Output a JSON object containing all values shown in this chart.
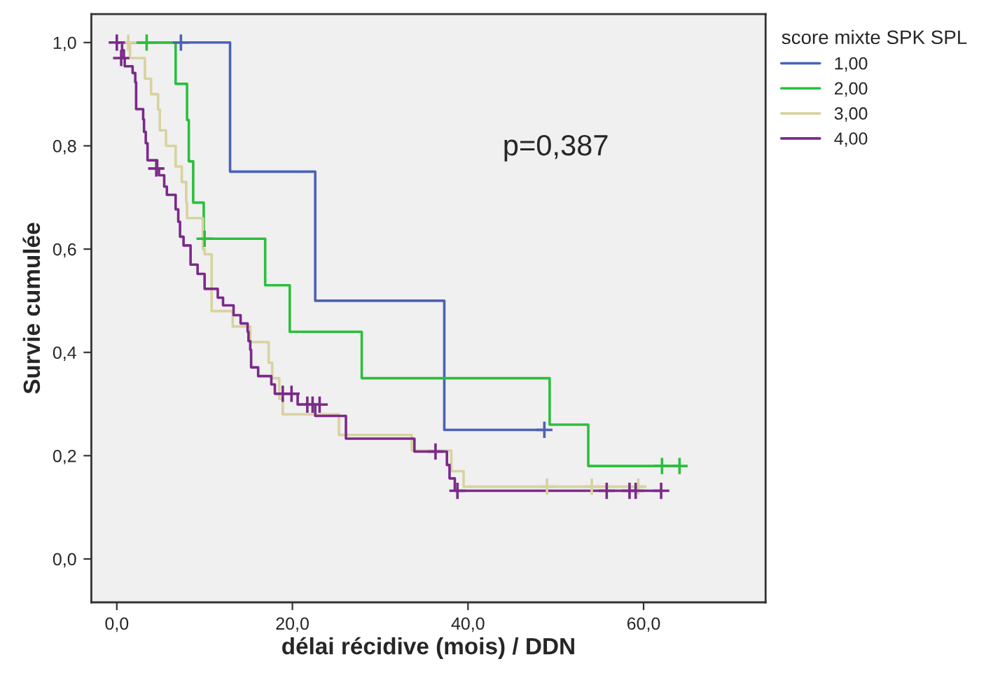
{
  "chart_data": {
    "type": "step",
    "xlabel": "délai récidive (mois) / DDN",
    "ylabel": "Survie cumulée",
    "legend_title": "score mixte SPK SPL",
    "legend": "right",
    "grid": false,
    "annotations": [
      "p=0,387"
    ],
    "xlim": [
      -2.9,
      73.9
    ],
    "ylim": [
      -0.084,
      1.055
    ],
    "xticks": [
      {
        "value": 0,
        "label": "0,0"
      },
      {
        "value": 20,
        "label": "20,0"
      },
      {
        "value": 40,
        "label": "40,0"
      },
      {
        "value": 60,
        "label": "60,0"
      }
    ],
    "yticks": [
      {
        "value": 0,
        "label": "0,0"
      },
      {
        "value": 0.2,
        "label": "0,2"
      },
      {
        "value": 0.4,
        "label": "0,4"
      },
      {
        "value": 0.6,
        "label": "0,6"
      },
      {
        "value": 0.8,
        "label": "0,8"
      },
      {
        "value": 1.0,
        "label": "1,0"
      }
    ],
    "series": [
      {
        "name": "1,00",
        "color": "#4a62b8",
        "x": [
          0,
          12.9,
          22.6,
          37.3,
          48.7
        ],
        "values": [
          1,
          0.75,
          0.5,
          0.25,
          0.25
        ]
      },
      {
        "name": "2,00",
        "color": "#2dbe3e",
        "x": [
          0,
          6.7,
          8.0,
          8.2,
          8.7,
          9.9,
          16.9,
          19.7,
          27.9,
          49.3,
          53.7,
          64.1
        ],
        "values": [
          1,
          0.92,
          0.85,
          0.77,
          0.69,
          0.62,
          0.53,
          0.44,
          0.35,
          0.26,
          0.18,
          0.18
        ]
      },
      {
        "name": "3,00",
        "color": "#d8d2a0",
        "x": [
          1.3,
          1.5,
          3.2,
          3.9,
          4.7,
          4.9,
          5.6,
          6.7,
          7.4,
          7.9,
          8.0,
          9.8,
          10.0,
          10.8,
          13.2,
          15.2,
          17.3,
          17.7,
          18.5,
          18.9,
          25.3,
          33.6,
          38.1,
          39.5,
          59.9
        ],
        "values": [
          1,
          0.97,
          0.93,
          0.9,
          0.87,
          0.83,
          0.8,
          0.76,
          0.73,
          0.69,
          0.66,
          0.6,
          0.59,
          0.48,
          0.45,
          0.42,
          0.38,
          0.35,
          0.31,
          0.28,
          0.24,
          0.21,
          0.17,
          0.14,
          0.14
        ]
      },
      {
        "name": "4,00",
        "color": "#7b2a8a",
        "x": [
          0,
          0.6,
          0.8,
          0.9,
          1.8,
          2.1,
          2.2,
          3.0,
          3.1,
          3.3,
          3.5,
          4.6,
          4.8,
          5.4,
          5.7,
          6.7,
          7.0,
          7.2,
          7.6,
          8.4,
          9.2,
          10.0,
          11.5,
          12.1,
          13.3,
          14.1,
          14.9,
          15.0,
          15.2,
          15.3,
          16.1,
          17.6,
          18.0,
          20.6,
          22.6,
          26.1,
          33.9,
          37.6,
          37.9,
          38.5,
          62.1
        ],
        "values": [
          1,
          0.985,
          0.97,
          0.954,
          0.941,
          0.923,
          0.871,
          0.851,
          0.827,
          0.805,
          0.772,
          0.756,
          0.743,
          0.721,
          0.705,
          0.677,
          0.653,
          0.624,
          0.607,
          0.57,
          0.552,
          0.523,
          0.506,
          0.491,
          0.472,
          0.456,
          0.44,
          0.422,
          0.405,
          0.371,
          0.354,
          0.338,
          0.32,
          0.299,
          0.277,
          0.233,
          0.208,
          0.182,
          0.156,
          0.132,
          0.132
        ]
      },
      {
        "type": "scatter",
        "marker": "cross",
        "color": "#4a62b8",
        "x": [
          7.3,
          48.7
        ],
        "values": [
          1,
          0.25
        ]
      },
      {
        "type": "scatter",
        "marker": "cross",
        "color": "#2dbe3e",
        "x": [
          3.4,
          10.0,
          62.1,
          64.1
        ],
        "values": [
          1,
          0.62,
          0.18,
          0.18
        ]
      },
      {
        "type": "scatter",
        "marker": "cross",
        "color": "#d8d2a0",
        "x": [
          1.3,
          49.0,
          54.1,
          59.4
        ],
        "values": [
          1,
          0.14,
          0.14,
          0.14
        ]
      },
      {
        "type": "scatter",
        "marker": "cross",
        "color": "#7b2a8a",
        "x": [
          0,
          0.5,
          4.5,
          18.9,
          19.9,
          21.7,
          22.3,
          23.1,
          36.3,
          38.8,
          55.8,
          58.4,
          59.1,
          62.0
        ],
        "values": [
          1,
          0.97,
          0.756,
          0.32,
          0.32,
          0.299,
          0.299,
          0.299,
          0.208,
          0.132,
          0.132,
          0.132,
          0.132,
          0.132
        ]
      }
    ]
  }
}
